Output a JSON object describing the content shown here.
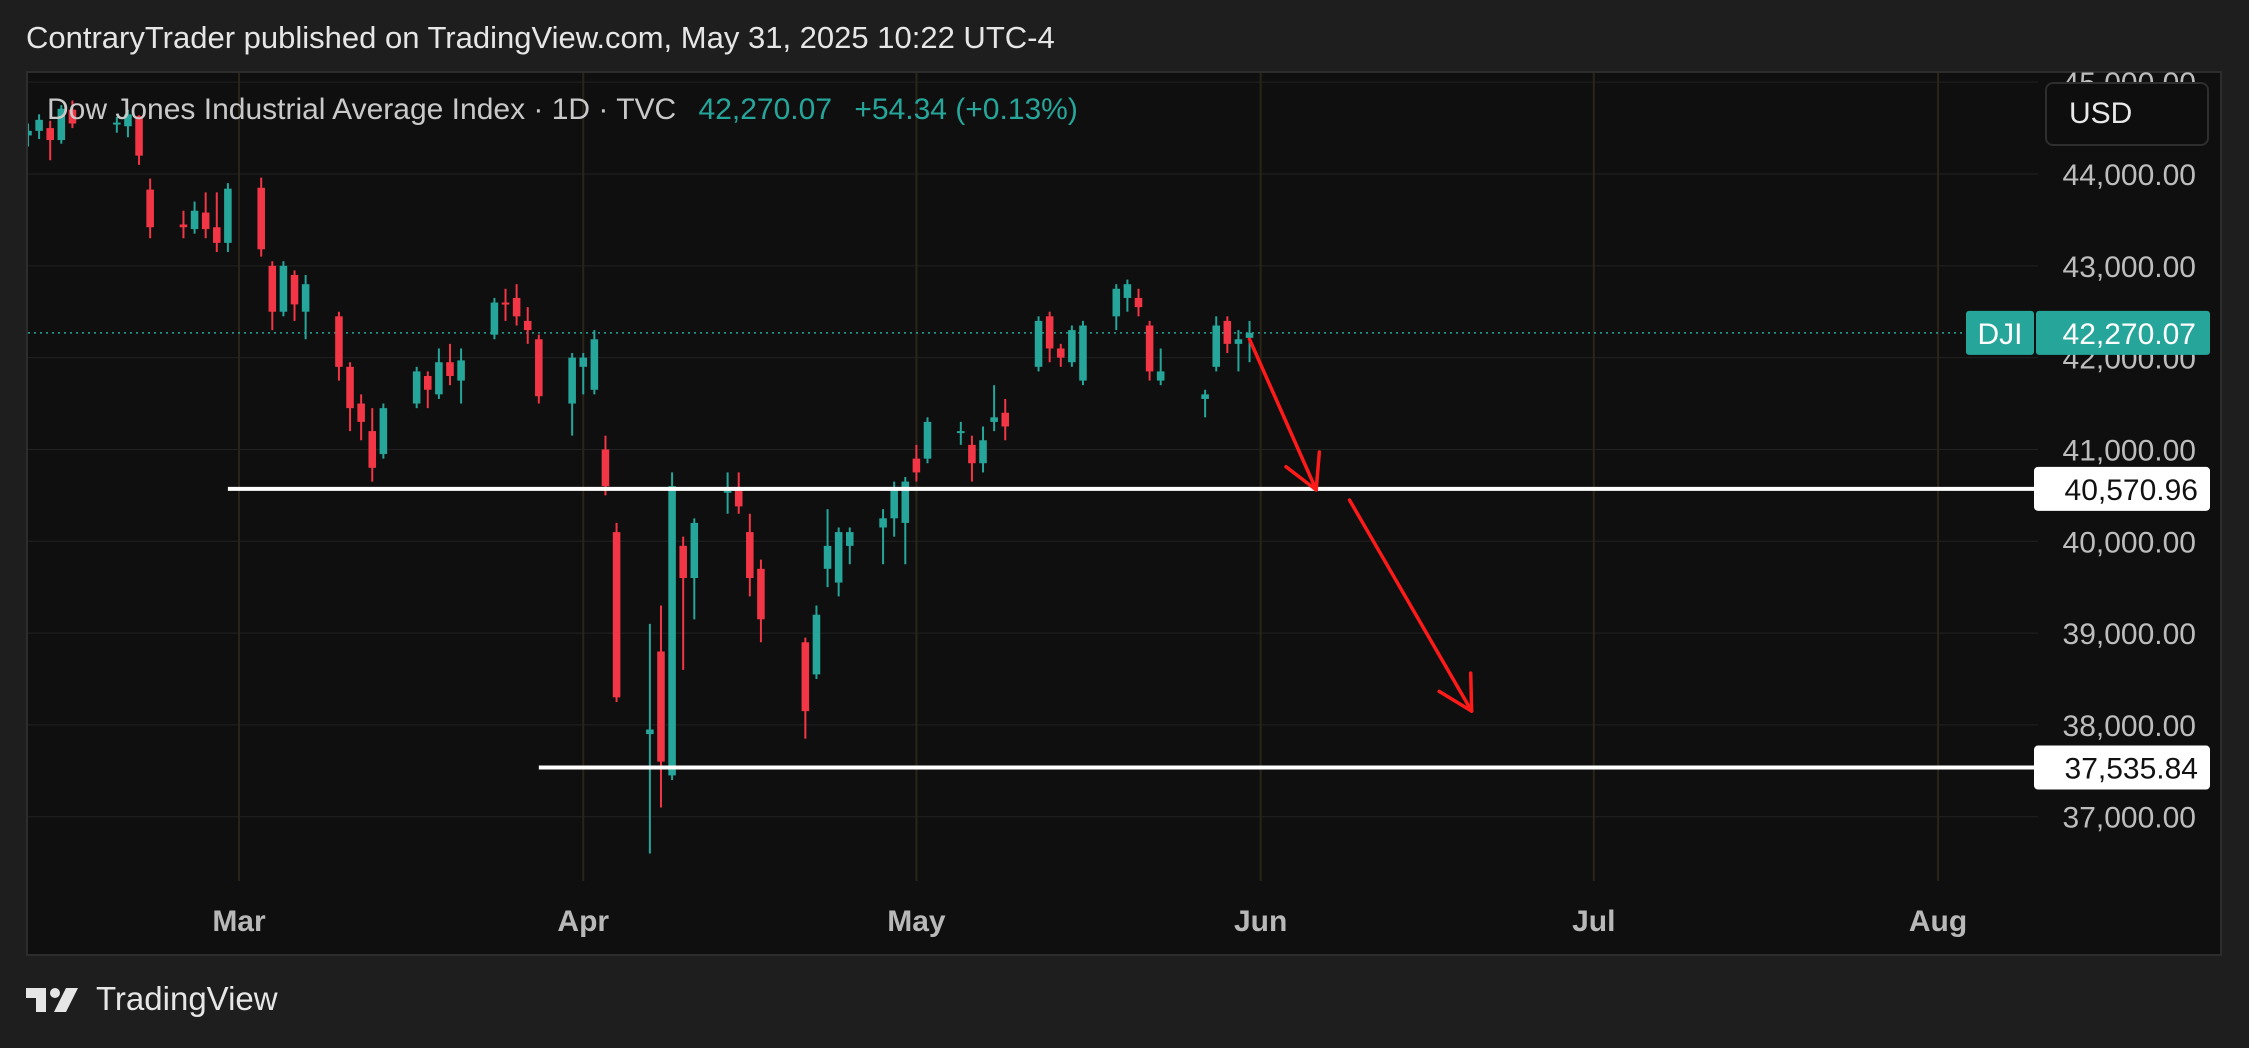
{
  "header": {
    "published": "ContraryTrader published on TradingView.com, May 31, 2025 10:22 UTC-4"
  },
  "legend": {
    "title": "Dow Jones Industrial Average Index · 1D · TVC",
    "price": "42,270.07",
    "change": "+54.34 (+0.13%)"
  },
  "currency": "USD",
  "brand": {
    "name": "TradingView",
    "logo_icon": "tradingview-logo-icon"
  },
  "colors": {
    "up": "#26a69a",
    "down": "#f23645",
    "arrow": "#ff1a1a",
    "level_line": "#ffffff",
    "background": "#0f0f0f"
  },
  "chart_data": {
    "type": "candlestick",
    "symbol": "DJI",
    "title": "Dow Jones Industrial Average Index · 1D · TVC",
    "xlabel": "",
    "ylabel": "",
    "x_ticks": [
      {
        "label": "Mar",
        "date": "2025-03-01"
      },
      {
        "label": "Apr",
        "date": "2025-04-01"
      },
      {
        "label": "May",
        "date": "2025-05-01"
      },
      {
        "label": "Jun",
        "date": "2025-06-01"
      },
      {
        "label": "Jul",
        "date": "2025-07-01"
      },
      {
        "label": "Aug",
        "date": "2025-08-01"
      }
    ],
    "xlim": [
      "2025-02-10",
      "2025-08-10"
    ],
    "ylim": [
      36300,
      45100
    ],
    "y_ticks": [
      {
        "label": "45,000.00",
        "value": 45000
      },
      {
        "label": "44,000.00",
        "value": 44000
      },
      {
        "label": "43,000.00",
        "value": 43000
      },
      {
        "label": "42,000.00",
        "value": 42000
      },
      {
        "label": "41,000.00",
        "value": 41000
      },
      {
        "label": "40,000.00",
        "value": 40000
      },
      {
        "label": "39,000.00",
        "value": 39000
      },
      {
        "label": "38,000.00",
        "value": 38000
      },
      {
        "label": "37,000.00",
        "value": 37000
      }
    ],
    "last_price": {
      "symbol": "DJI",
      "label": "42,270.07",
      "value": 42270.07
    },
    "levels": [
      {
        "label": "40,570.96",
        "value": 40570.96,
        "from": "2025-02-28"
      },
      {
        "label": "37,535.84",
        "value": 37535.84,
        "from": "2025-03-28"
      }
    ],
    "arrows": [
      {
        "from": {
          "date": "2025-05-31",
          "value": 42200
        },
        "to": {
          "date": "2025-06-06",
          "value": 40560
        }
      },
      {
        "from": {
          "date": "2025-06-09",
          "value": 40450
        },
        "to": {
          "date": "2025-06-20",
          "value": 38150
        }
      }
    ],
    "grid": true,
    "candles": [
      {
        "d": "2025-02-10",
        "o": 44420,
        "h": 44550,
        "l": 44300,
        "c": 44470
      },
      {
        "d": "2025-02-11",
        "o": 44470,
        "h": 44650,
        "l": 44380,
        "c": 44590
      },
      {
        "d": "2025-02-12",
        "o": 44500,
        "h": 44580,
        "l": 44150,
        "c": 44370
      },
      {
        "d": "2025-02-13",
        "o": 44370,
        "h": 44750,
        "l": 44330,
        "c": 44710
      },
      {
        "d": "2025-02-14",
        "o": 44700,
        "h": 44800,
        "l": 44500,
        "c": 44550
      },
      {
        "d": "2025-02-18",
        "o": 44560,
        "h": 44620,
        "l": 44450,
        "c": 44560
      },
      {
        "d": "2025-02-19",
        "o": 44520,
        "h": 44700,
        "l": 44400,
        "c": 44650
      },
      {
        "d": "2025-02-20",
        "o": 44630,
        "h": 44640,
        "l": 44100,
        "c": 44200
      },
      {
        "d": "2025-02-21",
        "o": 43830,
        "h": 43950,
        "l": 43300,
        "c": 43420
      },
      {
        "d": "2025-02-24",
        "o": 43450,
        "h": 43600,
        "l": 43300,
        "c": 43420
      },
      {
        "d": "2025-02-25",
        "o": 43400,
        "h": 43700,
        "l": 43350,
        "c": 43600
      },
      {
        "d": "2025-02-26",
        "o": 43580,
        "h": 43800,
        "l": 43300,
        "c": 43400
      },
      {
        "d": "2025-02-27",
        "o": 43420,
        "h": 43800,
        "l": 43150,
        "c": 43250
      },
      {
        "d": "2025-02-28",
        "o": 43250,
        "h": 43900,
        "l": 43150,
        "c": 43840
      },
      {
        "d": "2025-03-03",
        "o": 43850,
        "h": 43960,
        "l": 43100,
        "c": 43180
      },
      {
        "d": "2025-03-04",
        "o": 43000,
        "h": 43050,
        "l": 42300,
        "c": 42500
      },
      {
        "d": "2025-03-05",
        "o": 42500,
        "h": 43050,
        "l": 42450,
        "c": 43000
      },
      {
        "d": "2025-03-06",
        "o": 42900,
        "h": 42950,
        "l": 42400,
        "c": 42580
      },
      {
        "d": "2025-03-07",
        "o": 42500,
        "h": 42900,
        "l": 42200,
        "c": 42800
      },
      {
        "d": "2025-03-10",
        "o": 42450,
        "h": 42500,
        "l": 41750,
        "c": 41900
      },
      {
        "d": "2025-03-11",
        "o": 41900,
        "h": 41950,
        "l": 41200,
        "c": 41450
      },
      {
        "d": "2025-03-12",
        "o": 41500,
        "h": 41600,
        "l": 41100,
        "c": 41300
      },
      {
        "d": "2025-03-13",
        "o": 41200,
        "h": 41450,
        "l": 40650,
        "c": 40800
      },
      {
        "d": "2025-03-14",
        "o": 40950,
        "h": 41500,
        "l": 40900,
        "c": 41450
      },
      {
        "d": "2025-03-17",
        "o": 41500,
        "h": 41900,
        "l": 41450,
        "c": 41850
      },
      {
        "d": "2025-03-18",
        "o": 41800,
        "h": 41850,
        "l": 41450,
        "c": 41650
      },
      {
        "d": "2025-03-19",
        "o": 41600,
        "h": 42100,
        "l": 41550,
        "c": 41950
      },
      {
        "d": "2025-03-20",
        "o": 41950,
        "h": 42150,
        "l": 41700,
        "c": 41800
      },
      {
        "d": "2025-03-21",
        "o": 41750,
        "h": 42100,
        "l": 41500,
        "c": 41970
      },
      {
        "d": "2025-03-24",
        "o": 42250,
        "h": 42650,
        "l": 42200,
        "c": 42600
      },
      {
        "d": "2025-03-25",
        "o": 42600,
        "h": 42750,
        "l": 42400,
        "c": 42580
      },
      {
        "d": "2025-03-26",
        "o": 42650,
        "h": 42800,
        "l": 42350,
        "c": 42450
      },
      {
        "d": "2025-03-27",
        "o": 42400,
        "h": 42550,
        "l": 42150,
        "c": 42300
      },
      {
        "d": "2025-03-28",
        "o": 42200,
        "h": 42250,
        "l": 41500,
        "c": 41580
      },
      {
        "d": "2025-03-31",
        "o": 41500,
        "h": 42050,
        "l": 41150,
        "c": 42000
      },
      {
        "d": "2025-04-01",
        "o": 41900,
        "h": 42050,
        "l": 41600,
        "c": 42000
      },
      {
        "d": "2025-04-02",
        "o": 41650,
        "h": 42300,
        "l": 41600,
        "c": 42200
      },
      {
        "d": "2025-04-03",
        "o": 41000,
        "h": 41150,
        "l": 40500,
        "c": 40600
      },
      {
        "d": "2025-04-04",
        "o": 40100,
        "h": 40200,
        "l": 38250,
        "c": 38300
      },
      {
        "d": "2025-04-07",
        "o": 37900,
        "h": 39100,
        "l": 36600,
        "c": 37950
      },
      {
        "d": "2025-04-08",
        "o": 38800,
        "h": 39300,
        "l": 37100,
        "c": 37600
      },
      {
        "d": "2025-04-09",
        "o": 37450,
        "h": 40750,
        "l": 37400,
        "c": 40600
      },
      {
        "d": "2025-04-10",
        "o": 39950,
        "h": 40050,
        "l": 38600,
        "c": 39600
      },
      {
        "d": "2025-04-11",
        "o": 39600,
        "h": 40250,
        "l": 39150,
        "c": 40200
      },
      {
        "d": "2025-04-14",
        "o": 40550,
        "h": 40750,
        "l": 40300,
        "c": 40550
      },
      {
        "d": "2025-04-15",
        "o": 40550,
        "h": 40750,
        "l": 40300,
        "c": 40380
      },
      {
        "d": "2025-04-16",
        "o": 40100,
        "h": 40300,
        "l": 39400,
        "c": 39600
      },
      {
        "d": "2025-04-17",
        "o": 39700,
        "h": 39800,
        "l": 38900,
        "c": 39150
      },
      {
        "d": "2025-04-21",
        "o": 38900,
        "h": 38950,
        "l": 37850,
        "c": 38150
      },
      {
        "d": "2025-04-22",
        "o": 38550,
        "h": 39300,
        "l": 38500,
        "c": 39200
      },
      {
        "d": "2025-04-23",
        "o": 39700,
        "h": 40350,
        "l": 39500,
        "c": 39950
      },
      {
        "d": "2025-04-24",
        "o": 39550,
        "h": 40150,
        "l": 39400,
        "c": 40100
      },
      {
        "d": "2025-04-25",
        "o": 39950,
        "h": 40150,
        "l": 39750,
        "c": 40100
      },
      {
        "d": "2025-04-28",
        "o": 40150,
        "h": 40350,
        "l": 39750,
        "c": 40250
      },
      {
        "d": "2025-04-29",
        "o": 40250,
        "h": 40650,
        "l": 40050,
        "c": 40550
      },
      {
        "d": "2025-04-30",
        "o": 40200,
        "h": 40700,
        "l": 39750,
        "c": 40650
      },
      {
        "d": "2025-05-01",
        "o": 40900,
        "h": 41050,
        "l": 40650,
        "c": 40750
      },
      {
        "d": "2025-05-02",
        "o": 40900,
        "h": 41350,
        "l": 40850,
        "c": 41300
      },
      {
        "d": "2025-05-05",
        "o": 41200,
        "h": 41300,
        "l": 41050,
        "c": 41200
      },
      {
        "d": "2025-05-06",
        "o": 41050,
        "h": 41150,
        "l": 40650,
        "c": 40850
      },
      {
        "d": "2025-05-07",
        "o": 40850,
        "h": 41250,
        "l": 40750,
        "c": 41100
      },
      {
        "d": "2025-05-08",
        "o": 41300,
        "h": 41700,
        "l": 41200,
        "c": 41350
      },
      {
        "d": "2025-05-09",
        "o": 41400,
        "h": 41550,
        "l": 41100,
        "c": 41250
      },
      {
        "d": "2025-05-12",
        "o": 41900,
        "h": 42450,
        "l": 41850,
        "c": 42400
      },
      {
        "d": "2025-05-13",
        "o": 42450,
        "h": 42500,
        "l": 41950,
        "c": 42100
      },
      {
        "d": "2025-05-14",
        "o": 42100,
        "h": 42150,
        "l": 41900,
        "c": 42000
      },
      {
        "d": "2025-05-15",
        "o": 41950,
        "h": 42350,
        "l": 41900,
        "c": 42300
      },
      {
        "d": "2025-05-16",
        "o": 41750,
        "h": 42400,
        "l": 41700,
        "c": 42350
      },
      {
        "d": "2025-05-19",
        "o": 42450,
        "h": 42800,
        "l": 42300,
        "c": 42750
      },
      {
        "d": "2025-05-20",
        "o": 42650,
        "h": 42850,
        "l": 42500,
        "c": 42800
      },
      {
        "d": "2025-05-21",
        "o": 42650,
        "h": 42750,
        "l": 42450,
        "c": 42550
      },
      {
        "d": "2025-05-22",
        "o": 42350,
        "h": 42400,
        "l": 41750,
        "c": 41850
      },
      {
        "d": "2025-05-23",
        "o": 41750,
        "h": 42100,
        "l": 41700,
        "c": 41850
      },
      {
        "d": "2025-05-27",
        "o": 41550,
        "h": 41650,
        "l": 41350,
        "c": 41600
      },
      {
        "d": "2025-05-28",
        "o": 41900,
        "h": 42450,
        "l": 41850,
        "c": 42350
      },
      {
        "d": "2025-05-29",
        "o": 42400,
        "h": 42450,
        "l": 42050,
        "c": 42150
      },
      {
        "d": "2025-05-30",
        "o": 42150,
        "h": 42300,
        "l": 41850,
        "c": 42200
      },
      {
        "d": "2025-05-31",
        "o": 42215,
        "h": 42400,
        "l": 41950,
        "c": 42270
      }
    ]
  }
}
